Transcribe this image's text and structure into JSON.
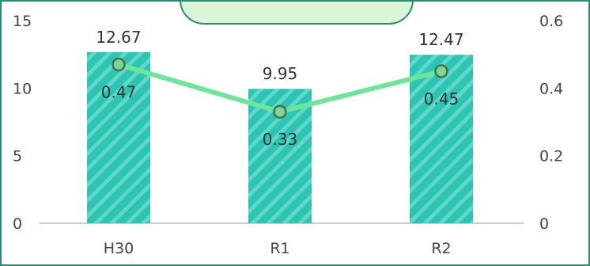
{
  "chart_data": {
    "type": "bar",
    "title": "",
    "categories": [
      "H30",
      "R1",
      "R2"
    ],
    "series": [
      {
        "type": "bar",
        "axis": "left",
        "values": [
          12.67,
          9.95,
          12.47
        ],
        "labels": [
          "12.67",
          "9.95",
          "12.47"
        ],
        "color": "#2cc4b2",
        "pattern": "diagonal-stripes"
      },
      {
        "type": "line",
        "axis": "right",
        "values": [
          0.47,
          0.33,
          0.45
        ],
        "labels": [
          "0.47",
          "0.33",
          "0.45"
        ],
        "color": "#6ee69a",
        "marker_fill": "#7ad98e",
        "marker_stroke": "#4a6a5a"
      }
    ],
    "y_left": {
      "ylim": [
        0,
        15
      ],
      "ticks": [
        "0",
        "5",
        "10",
        "15"
      ]
    },
    "y_right": {
      "ylim": [
        0,
        0.6
      ],
      "ticks": [
        "0",
        "0.2",
        "0.4",
        "0.6"
      ]
    },
    "grid": false,
    "legend": "top-center (partially cut off)",
    "colors": {
      "frame": "#2e8b73",
      "legend_fill": "#d9f7d6",
      "legend_border": "#2e8b73"
    }
  }
}
